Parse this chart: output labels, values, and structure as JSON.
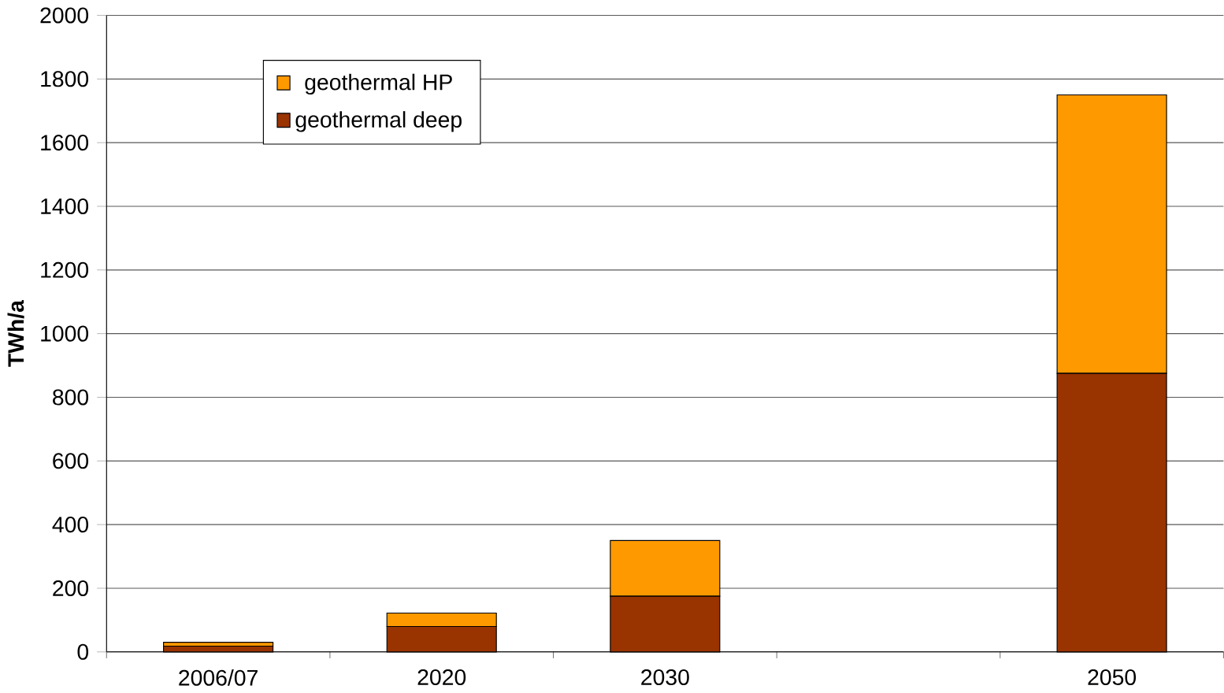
{
  "chart_data": {
    "type": "bar",
    "stacked": true,
    "ylabel": "TWh/a",
    "categories": [
      "2006/07",
      "2020",
      "2030",
      null,
      "2050"
    ],
    "series": [
      {
        "name": "geothermal deep",
        "color": "#993300",
        "values": [
          18,
          80,
          175,
          null,
          875
        ]
      },
      {
        "name": "geothermal HP",
        "color": "#ff9900",
        "values": [
          12,
          42,
          175,
          null,
          875
        ]
      }
    ],
    "ylim": [
      0,
      2000
    ],
    "yticks": [
      0,
      200,
      400,
      600,
      800,
      1000,
      1200,
      1400,
      1600,
      1800,
      2000
    ],
    "grid": "y",
    "legend": "top left"
  }
}
